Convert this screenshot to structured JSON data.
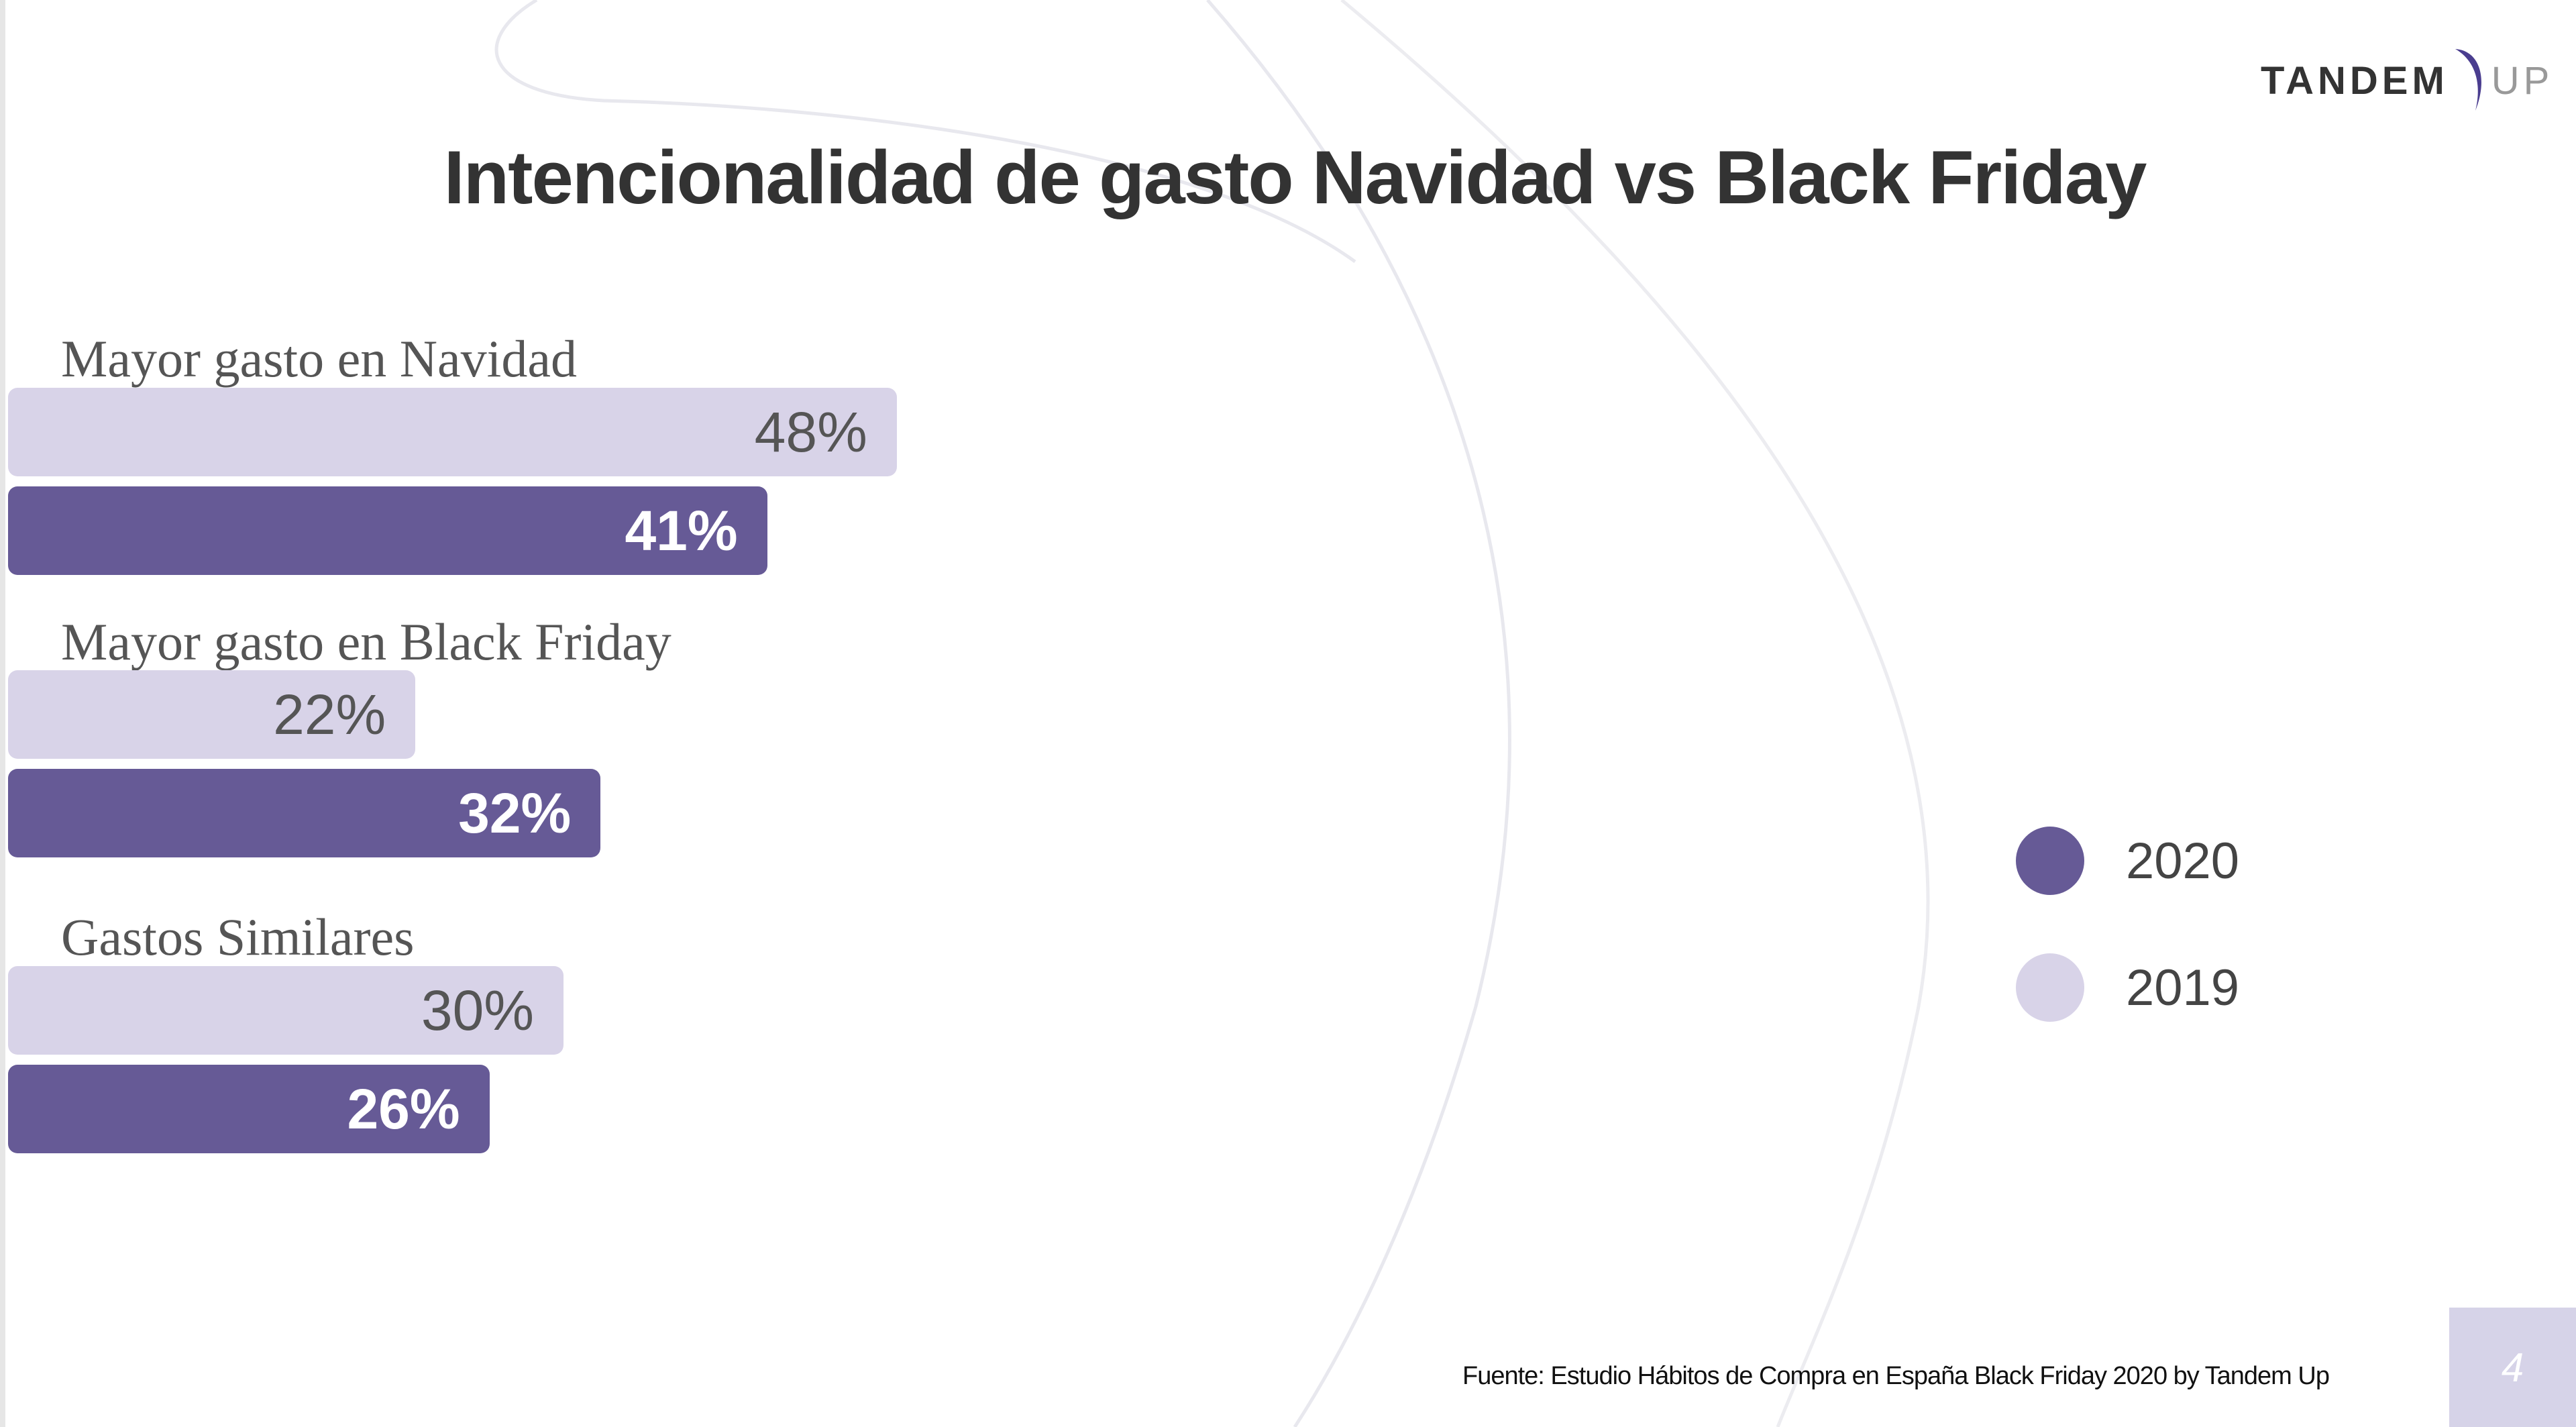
{
  "logo": {
    "text_main": "TANDEM",
    "text_suffix": "UP"
  },
  "chart_data": {
    "type": "bar",
    "orientation": "horizontal",
    "title": "Intencionalidad de gasto Navidad vs Black Friday",
    "categories": [
      "Mayor gasto en Navidad",
      "Mayor gasto en Black Friday",
      "Gastos Similares"
    ],
    "series": [
      {
        "name": "2019",
        "color": "#d8d3e8",
        "values": [
          48,
          22,
          30
        ],
        "labels": [
          "48%",
          "22%",
          "30%"
        ]
      },
      {
        "name": "2020",
        "color": "#665a96",
        "values": [
          41,
          32,
          26
        ],
        "labels": [
          "41%",
          "32%",
          "26%"
        ]
      }
    ],
    "legend": {
      "position": "right",
      "items": [
        "2020",
        "2019"
      ]
    },
    "unit": "%"
  },
  "footer": {
    "source": "Fuente: Estudio Hábitos de Compra en España Black Friday 2020 by Tandem Up",
    "page_number": "4"
  }
}
